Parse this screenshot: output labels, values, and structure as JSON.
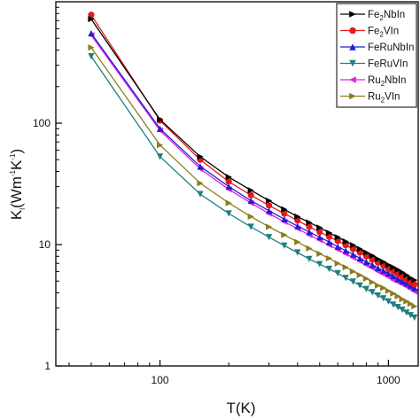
{
  "chart_data": {
    "type": "line",
    "xlabel": "T(K)",
    "ylabel": {
      "main": "K",
      "sub": "l",
      "rest1": "(Wm",
      "sup1": "-1",
      "rest2": "K",
      "sup2": "-1",
      "rest3": ")"
    },
    "xscale": "log",
    "yscale": "log",
    "xlim": [
      35,
      1350
    ],
    "ylim": [
      1,
      1000
    ],
    "x_ticks": [
      100,
      1000
    ],
    "x_tick_labels": [
      "100",
      "1000"
    ],
    "y_ticks": [
      1,
      10,
      100
    ],
    "y_tick_labels": [
      "1",
      "10",
      "100"
    ],
    "grid": false,
    "legend_position": "top-right",
    "x": [
      50,
      100,
      150,
      200,
      250,
      300,
      350,
      400,
      450,
      500,
      550,
      600,
      650,
      700,
      750,
      800,
      850,
      900,
      950,
      1000,
      1050,
      1100,
      1150,
      1200,
      1250,
      1300
    ],
    "series": [
      {
        "name_parts": [
          [
            "Fe",
            ""
          ],
          [
            "2",
            "sub"
          ],
          [
            "NbIn",
            ""
          ]
        ],
        "color": "#000000",
        "marker": "triangle-right",
        "values": [
          720,
          107,
          53,
          36,
          28,
          23,
          19.5,
          17,
          15.2,
          13.8,
          12.5,
          11.5,
          10.6,
          9.9,
          9.2,
          8.6,
          8.1,
          7.6,
          7.2,
          6.8,
          6.5,
          6.2,
          5.9,
          5.6,
          5.3,
          5.1
        ]
      },
      {
        "name_parts": [
          [
            "Fe",
            ""
          ],
          [
            "2",
            "sub"
          ],
          [
            "VIn",
            ""
          ]
        ],
        "color": "#e41a1c",
        "marker": "circle",
        "values": [
          780,
          105,
          50,
          33,
          25.5,
          21,
          18,
          15.8,
          14,
          12.7,
          11.6,
          10.7,
          9.9,
          9.2,
          8.6,
          8.0,
          7.5,
          7.1,
          6.7,
          6.3,
          6.0,
          5.7,
          5.4,
          5.2,
          4.9,
          4.7
        ]
      },
      {
        "name_parts": [
          [
            "FeRuNbIn",
            ""
          ]
        ],
        "color": "#1f1fd6",
        "marker": "triangle-up",
        "values": [
          550,
          90,
          44,
          30,
          23,
          19,
          16.2,
          14.2,
          12.7,
          11.5,
          10.5,
          9.6,
          8.9,
          8.3,
          7.7,
          7.2,
          6.8,
          6.4,
          6.1,
          5.8,
          5.5,
          5.2,
          5.0,
          4.8,
          4.6,
          4.4
        ]
      },
      {
        "name_parts": [
          [
            "FeRuVIn",
            ""
          ]
        ],
        "color": "#1f7f7f",
        "marker": "triangle-down",
        "values": [
          355,
          53,
          26,
          18,
          14,
          11.5,
          9.8,
          8.6,
          7.6,
          6.9,
          6.3,
          5.8,
          5.3,
          4.95,
          4.6,
          4.3,
          4.05,
          3.8,
          3.6,
          3.4,
          3.2,
          3.05,
          2.9,
          2.75,
          2.62,
          2.5
        ]
      },
      {
        "name_parts": [
          [
            "Ru",
            ""
          ],
          [
            "2",
            "sub"
          ],
          [
            "NbIn",
            ""
          ]
        ],
        "color": "#e020e0",
        "marker": "triangle-left",
        "values": [
          530,
          87,
          42,
          28.5,
          22,
          18,
          15.4,
          13.5,
          12,
          10.9,
          9.9,
          9.1,
          8.4,
          7.8,
          7.3,
          6.8,
          6.4,
          6.0,
          5.7,
          5.4,
          5.1,
          4.9,
          4.7,
          4.5,
          4.3,
          4.1
        ]
      },
      {
        "name_parts": [
          [
            "Ru",
            ""
          ],
          [
            "2",
            "sub"
          ],
          [
            "VIn",
            ""
          ]
        ],
        "color": "#8a7d1e",
        "marker": "triangle-right",
        "values": [
          420,
          66,
          32,
          22,
          17,
          14,
          12,
          10.5,
          9.3,
          8.4,
          7.7,
          7.0,
          6.5,
          6.0,
          5.6,
          5.25,
          4.9,
          4.6,
          4.4,
          4.15,
          3.95,
          3.75,
          3.55,
          3.4,
          3.25,
          3.1
        ]
      }
    ]
  }
}
